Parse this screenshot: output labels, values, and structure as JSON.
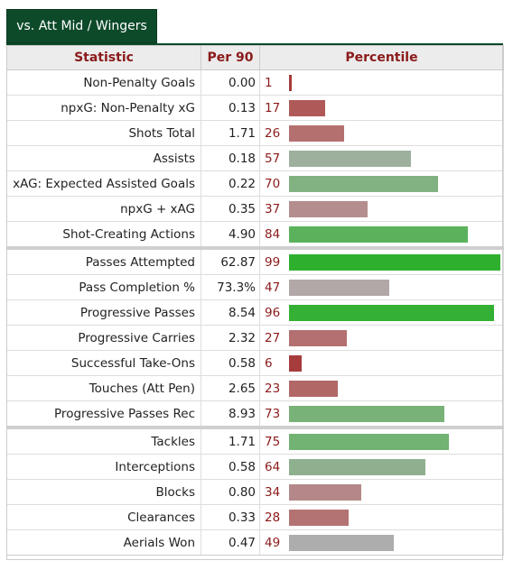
{
  "tab_label": "vs. Att Mid / Wingers",
  "headers": {
    "statistic": "Statistic",
    "per90": "Per 90",
    "percentile": "Percentile"
  },
  "rows": [
    {
      "stat": "Non-Penalty Goals",
      "per90": "0.00",
      "pct": 1,
      "color": "#a53a3a",
      "sep": false
    },
    {
      "stat": "npxG: Non-Penalty xG",
      "per90": "0.13",
      "pct": 17,
      "color": "#b05959",
      "sep": false
    },
    {
      "stat": "Shots Total",
      "per90": "1.71",
      "pct": 26,
      "color": "#b46f6f",
      "sep": false
    },
    {
      "stat": "Assists",
      "per90": "0.18",
      "pct": 57,
      "color": "#9db09d",
      "sep": false
    },
    {
      "stat": "xAG: Expected Assisted Goals",
      "per90": "0.22",
      "pct": 70,
      "color": "#82b282",
      "sep": false
    },
    {
      "stat": "npxG + xAG",
      "per90": "0.35",
      "pct": 37,
      "color": "#b48e8e",
      "sep": false
    },
    {
      "stat": "Shot-Creating Actions",
      "per90": "4.90",
      "pct": 84,
      "color": "#5cb25c",
      "sep": false
    },
    {
      "stat": "Passes Attempted",
      "per90": "62.87",
      "pct": 99,
      "color": "#2eb02e",
      "sep": true
    },
    {
      "stat": "Pass Completion %",
      "per90": "73.3%",
      "pct": 47,
      "color": "#b2a8a8",
      "sep": false
    },
    {
      "stat": "Progressive Passes",
      "per90": "8.54",
      "pct": 96,
      "color": "#34b034",
      "sep": false
    },
    {
      "stat": "Progressive Carries",
      "per90": "2.32",
      "pct": 27,
      "color": "#b47070",
      "sep": false
    },
    {
      "stat": "Successful Take-Ons",
      "per90": "0.58",
      "pct": 6,
      "color": "#a63c3c",
      "sep": false
    },
    {
      "stat": "Touches (Att Pen)",
      "per90": "2.65",
      "pct": 23,
      "color": "#b26767",
      "sep": false
    },
    {
      "stat": "Progressive Passes Rec",
      "per90": "8.93",
      "pct": 73,
      "color": "#78b278",
      "sep": false
    },
    {
      "stat": "Tackles",
      "per90": "1.71",
      "pct": 75,
      "color": "#72b272",
      "sep": true
    },
    {
      "stat": "Interceptions",
      "per90": "0.58",
      "pct": 64,
      "color": "#8eb08e",
      "sep": false
    },
    {
      "stat": "Blocks",
      "per90": "0.80",
      "pct": 34,
      "color": "#b48888",
      "sep": false
    },
    {
      "stat": "Clearances",
      "per90": "0.33",
      "pct": 28,
      "color": "#b47373",
      "sep": false
    },
    {
      "stat": "Aerials Won",
      "per90": "0.47",
      "pct": 49,
      "color": "#adadad",
      "sep": false
    }
  ]
}
